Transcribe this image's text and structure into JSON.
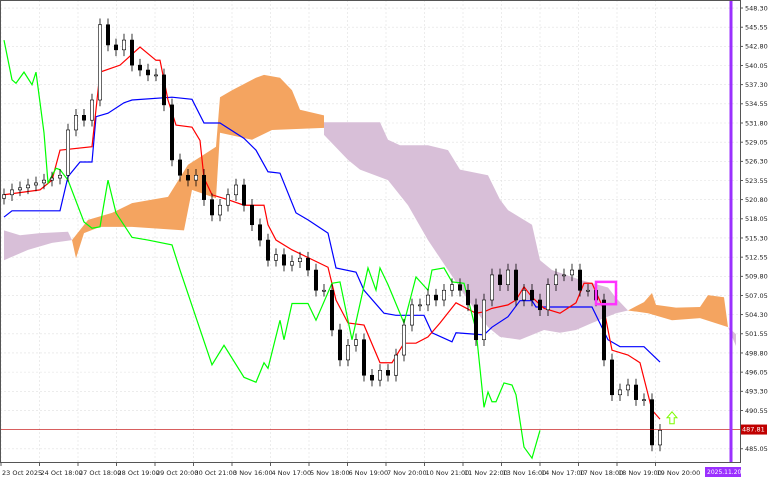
{
  "chart_data": {
    "type": "candlestick",
    "instrument_view": "Ichimoku Kinko Hyo",
    "colors": {
      "tenkan": "#ff0000",
      "kijun": "#0000ff",
      "chikou": "#00ff00",
      "cloud_bullish": "#f4a460",
      "cloud_bearish": "#d8bfd8",
      "bull_candle": "#ffffff",
      "bear_candle": "#000000",
      "current_price": "#c00000",
      "period_marker": "#9b30ff",
      "highlight_box": "#ff33ff",
      "signal_arrow": "#7cfc00"
    },
    "ylim": [
      483.0,
      549.5
    ],
    "grid": true,
    "y_ticks": [
      "548.30",
      "545.55",
      "542.80",
      "540.05",
      "537.30",
      "534.55",
      "531.80",
      "529.05",
      "526.30",
      "523.55",
      "520.80",
      "518.05",
      "515.30",
      "512.55",
      "509.80",
      "507.05",
      "504.30",
      "501.55",
      "498.80",
      "496.05",
      "493.30",
      "490.55",
      "485.05"
    ],
    "x_ticks": [
      "23 Oct 2025",
      "24 Oct 18:00",
      "27 Oct 18:00",
      "28 Oct 19:00",
      "29 Oct 20:00",
      "30 Oct 21:00",
      "3 Nov 16:00",
      "4 Nov 17:00",
      "5 Nov 18:00",
      "6 Nov 19:00",
      "7 Nov 20:00",
      "10 Nov 21:00",
      "11 Nov 22:00",
      "13 Nov 16:00",
      "14 Nov 17:00",
      "17 Nov 18:00",
      "18 Nov 19:00",
      "19 Nov 20:00"
    ],
    "current_price": "487.81",
    "highlighted_time": "2025.11.20 12:00",
    "closes": [
      521.5,
      522.2,
      522.5,
      522.9,
      523.2,
      523.6,
      523.9,
      524.3,
      530.8,
      532.9,
      532.2,
      535.1,
      545.9,
      543.0,
      542.3,
      543.7,
      540.1,
      539.4,
      538.7,
      538.7,
      534.4,
      526.5,
      524.3,
      523.6,
      524.3,
      520.8,
      518.6,
      520.0,
      521.5,
      522.9,
      520.0,
      517.2,
      515.0,
      512.1,
      512.9,
      511.4,
      511.9,
      512.4,
      510.7,
      507.8,
      507.8,
      502.1,
      497.8,
      499.9,
      500.7,
      495.6,
      494.9,
      496.3,
      495.6,
      498.5,
      502.8,
      505.7,
      505.7,
      507.1,
      506.4,
      507.8,
      508.6,
      507.8,
      505.7,
      500.7,
      506.4,
      510.0,
      508.6,
      510.7,
      506.4,
      507.8,
      506.4,
      505.0,
      508.6,
      510.0,
      510.0,
      510.7,
      507.8,
      507.8,
      506.4,
      497.8,
      492.8,
      493.5,
      494.2,
      492.1,
      492.1,
      485.6,
      487.7
    ],
    "tenkan": [
      [
        0,
        521.5
      ],
      [
        4.5,
        522.2
      ],
      [
        6,
        523.6
      ],
      [
        7,
        527.9
      ],
      [
        11,
        528.4
      ],
      [
        12,
        539.1
      ],
      [
        14.5,
        540.1
      ],
      [
        17,
        542.7
      ],
      [
        19,
        540.8
      ],
      [
        19.5,
        540.8
      ],
      [
        20.5,
        535.1
      ],
      [
        21.5,
        531.5
      ],
      [
        23.5,
        531.2
      ],
      [
        24.5,
        529.3
      ],
      [
        25,
        523.9
      ],
      [
        26,
        521.5
      ],
      [
        28,
        520.8
      ],
      [
        30,
        520.0
      ],
      [
        32.5,
        520.0
      ],
      [
        33,
        517.2
      ],
      [
        34,
        515.0
      ],
      [
        36,
        513.6
      ],
      [
        40.5,
        511.1
      ],
      [
        41.5,
        506.4
      ],
      [
        43,
        503.1
      ],
      [
        45,
        502.8
      ],
      [
        47,
        497.4
      ],
      [
        48.5,
        497.4
      ],
      [
        50,
        500.2
      ],
      [
        51.5,
        500.2
      ],
      [
        53,
        501.1
      ],
      [
        54.5,
        503.1
      ],
      [
        56.5,
        506.0
      ],
      [
        59,
        504.5
      ],
      [
        60,
        504.7
      ],
      [
        61,
        505.2
      ],
      [
        63,
        505.7
      ],
      [
        64,
        506.4
      ],
      [
        65,
        508.3
      ],
      [
        66,
        506.8
      ],
      [
        67.5,
        505.2
      ],
      [
        69.5,
        504.5
      ],
      [
        71.5,
        506.0
      ],
      [
        72.5,
        508.8
      ],
      [
        73.5,
        508.8
      ],
      [
        75,
        505.0
      ],
      [
        76,
        499.2
      ],
      [
        78,
        498.5
      ],
      [
        79.5,
        497.4
      ],
      [
        81,
        490.6
      ],
      [
        82,
        489.3
      ]
    ],
    "kijun": [
      [
        0,
        518.3
      ],
      [
        1,
        519.2
      ],
      [
        7,
        519.2
      ],
      [
        8,
        524.1
      ],
      [
        9.5,
        526.2
      ],
      [
        11,
        526.2
      ],
      [
        11.5,
        532.7
      ],
      [
        13,
        533.2
      ],
      [
        15,
        534.7
      ],
      [
        16,
        535.1
      ],
      [
        21,
        535.5
      ],
      [
        23.5,
        535.2
      ],
      [
        25,
        531.8
      ],
      [
        27,
        531.8
      ],
      [
        30,
        529.6
      ],
      [
        31.5,
        527.9
      ],
      [
        33,
        524.8
      ],
      [
        34.5,
        524.6
      ],
      [
        36.5,
        518.9
      ],
      [
        38,
        517.9
      ],
      [
        40.5,
        516.0
      ],
      [
        41.5,
        511.0
      ],
      [
        44,
        510.4
      ],
      [
        45,
        507.8
      ],
      [
        47.5,
        504.5
      ],
      [
        49,
        504.2
      ],
      [
        52.5,
        504.2
      ],
      [
        53.5,
        501.7
      ],
      [
        56,
        500.4
      ],
      [
        56.5,
        501.7
      ],
      [
        60,
        501.4
      ],
      [
        61,
        502.5
      ],
      [
        63,
        504.0
      ],
      [
        64.5,
        506.3
      ],
      [
        66,
        506.3
      ],
      [
        66.5,
        505.4
      ],
      [
        73.5,
        505.4
      ],
      [
        75.5,
        500.7
      ],
      [
        77,
        499.7
      ],
      [
        80,
        499.7
      ],
      [
        82,
        497.5
      ]
    ],
    "chikou": [
      [
        0,
        543.7
      ],
      [
        1,
        538.0
      ],
      [
        1.5,
        537.5
      ],
      [
        2.5,
        539.1
      ],
      [
        3.5,
        537.3
      ],
      [
        4,
        539.1
      ],
      [
        5,
        530.4
      ],
      [
        5.5,
        523.2
      ],
      [
        6.5,
        525.3
      ],
      [
        7,
        525.1
      ],
      [
        8,
        523.6
      ],
      [
        10,
        517.6
      ],
      [
        11,
        516.7
      ],
      [
        12,
        516.9
      ],
      [
        13,
        523.6
      ],
      [
        14,
        518.9
      ],
      [
        16,
        515.4
      ],
      [
        18,
        515.0
      ],
      [
        21,
        514.3
      ],
      [
        22,
        510.7
      ],
      [
        26,
        497.1
      ],
      [
        27.5,
        499.9
      ],
      [
        30,
        495.3
      ],
      [
        31.5,
        494.6
      ],
      [
        32.5,
        497.4
      ],
      [
        33,
        496.6
      ],
      [
        34.5,
        503.5
      ],
      [
        35,
        500.7
      ],
      [
        36,
        505.9
      ],
      [
        38,
        505.9
      ],
      [
        39,
        503.5
      ],
      [
        41,
        508.8
      ],
      [
        42,
        509.0
      ],
      [
        43.5,
        500.7
      ],
      [
        45.5,
        511.0
      ],
      [
        46.5,
        507.8
      ],
      [
        47,
        511.0
      ],
      [
        48,
        508.6
      ],
      [
        50,
        503.1
      ],
      [
        51.5,
        509.7
      ],
      [
        53,
        507.8
      ],
      [
        53.5,
        510.7
      ],
      [
        55,
        511.0
      ],
      [
        56,
        509.0
      ],
      [
        57.5,
        508.8
      ],
      [
        59,
        502.1
      ],
      [
        60,
        491.0
      ],
      [
        60.5,
        493.2
      ],
      [
        61,
        491.8
      ],
      [
        61.5,
        491.8
      ],
      [
        62.5,
        494.5
      ],
      [
        63.5,
        494.2
      ],
      [
        64,
        492.8
      ],
      [
        65,
        485.3
      ],
      [
        66,
        483.7
      ],
      [
        67,
        487.7
      ]
    ],
    "cloud": [
      {
        "kind": "bearish",
        "top": [
          [
            0,
            516.4
          ],
          [
            2,
            515.7
          ],
          [
            4.5,
            516.0
          ],
          [
            8,
            516.2
          ],
          [
            8.5,
            515.0
          ]
        ],
        "bottom": [
          [
            0,
            512.1
          ],
          [
            3,
            513.6
          ],
          [
            6,
            514.6
          ],
          [
            8.5,
            515.0
          ]
        ]
      },
      {
        "kind": "bullish",
        "top": [
          [
            8.5,
            515.0
          ],
          [
            10.5,
            517.9
          ],
          [
            13.5,
            518.9
          ],
          [
            16,
            520.3
          ],
          [
            20.5,
            521.2
          ],
          [
            23,
            525.8
          ],
          [
            24.5,
            526.9
          ],
          [
            26.5,
            528.4
          ],
          [
            27,
            535.5
          ],
          [
            28.5,
            536.5
          ],
          [
            31.5,
            538.3
          ],
          [
            32.5,
            538.7
          ],
          [
            34.5,
            538.3
          ],
          [
            36,
            536.5
          ],
          [
            37,
            533.7
          ],
          [
            40,
            532.9
          ]
        ],
        "bottom": [
          [
            8.5,
            515.0
          ],
          [
            9,
            512.4
          ],
          [
            10,
            516.0
          ],
          [
            12,
            516.9
          ],
          [
            16,
            516.9
          ],
          [
            22.5,
            516.4
          ],
          [
            23,
            519.3
          ],
          [
            23.5,
            522.2
          ],
          [
            26.5,
            521.0
          ],
          [
            27,
            530.4
          ],
          [
            31,
            529.4
          ],
          [
            33.5,
            530.8
          ],
          [
            40,
            531.1
          ]
        ]
      },
      {
        "kind": "bearish",
        "top": [
          [
            40,
            531.9
          ],
          [
            47,
            531.9
          ],
          [
            48,
            529.4
          ],
          [
            49.5,
            528.6
          ],
          [
            53,
            528.6
          ],
          [
            55.5,
            527.9
          ],
          [
            57,
            525.1
          ],
          [
            60.5,
            524.3
          ],
          [
            62,
            520.8
          ],
          [
            63,
            519.3
          ],
          [
            66,
            517.2
          ],
          [
            67,
            512.1
          ],
          [
            68.5,
            510.7
          ],
          [
            72,
            509.3
          ],
          [
            75.5,
            508.2
          ],
          [
            76.5,
            506.7
          ],
          [
            78,
            504.9
          ]
        ],
        "bottom": [
          [
            40,
            530.1
          ],
          [
            43,
            526.5
          ],
          [
            44.5,
            525.1
          ],
          [
            48,
            523.6
          ],
          [
            50.5,
            520.0
          ],
          [
            53,
            515.0
          ],
          [
            55.5,
            510.7
          ],
          [
            58,
            506.4
          ],
          [
            60.5,
            502.5
          ],
          [
            62,
            501.1
          ],
          [
            64.5,
            500.7
          ],
          [
            67.5,
            502.1
          ],
          [
            69.5,
            501.7
          ],
          [
            71.5,
            502.1
          ],
          [
            73.5,
            503.1
          ],
          [
            76.5,
            504.5
          ],
          [
            78,
            504.9
          ]
        ]
      },
      {
        "kind": "bullish",
        "top": [
          [
            78,
            504.9
          ],
          [
            80,
            506.1
          ],
          [
            81,
            507.4
          ],
          [
            81.5,
            505.7
          ],
          [
            84,
            505.3
          ],
          [
            87,
            505.4
          ],
          [
            88,
            507.1
          ],
          [
            90,
            506.8
          ],
          [
            90.5,
            502.5
          ]
        ],
        "bottom": [
          [
            78,
            504.9
          ],
          [
            80.5,
            504.5
          ],
          [
            83.5,
            503.5
          ],
          [
            87,
            503.8
          ],
          [
            90.5,
            502.5
          ]
        ]
      },
      {
        "kind": "bearish",
        "top": [
          [
            90.5,
            502.5
          ],
          [
            91.5,
            501.5
          ]
        ],
        "bottom": [
          [
            90.5,
            502.5
          ],
          [
            91.5,
            499.8
          ]
        ]
      }
    ],
    "highlight_box_range": {
      "from_bar": 74,
      "to_bar": 76.5,
      "price_high": 509.0,
      "price_low": 505.8
    },
    "signal_arrow": {
      "bar": 83.5,
      "price": 489.5,
      "direction": "up"
    }
  }
}
